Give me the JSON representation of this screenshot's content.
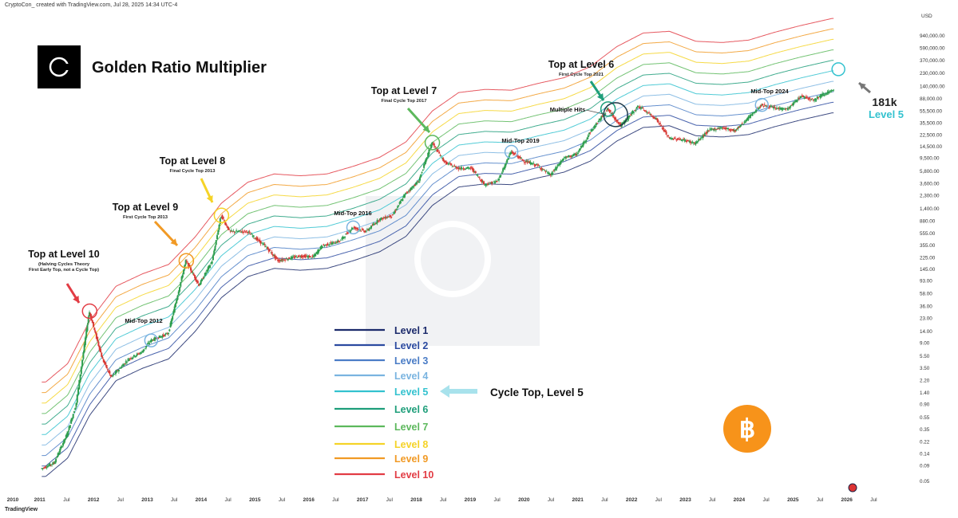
{
  "header": "CryptoCon_ created with TradingView.com, Jul 28, 2025 14:34 UTC-4",
  "footer": "TradingView",
  "colors": {
    "level_1": "#1b2a6b",
    "level_2": "#2b4aa0",
    "level_3": "#4a7cc6",
    "level_4": "#7ab4e0",
    "level_5": "#33c2cf",
    "level_6": "#1e9e7a",
    "level_7": "#5cb85c",
    "level_8": "#f5d327",
    "level_9": "#f19a25",
    "level_10": "#e23c44",
    "bitcoin": "#f7931a",
    "candle_up": "#2e9e4f",
    "candle_down": "#d83b36"
  },
  "chart_data": {
    "type": "line",
    "title": "Golden Ratio Multiplier",
    "y_axis_unit": "USD",
    "y_scale": "log",
    "ylim": [
      0.05,
      1500000
    ],
    "y_ticks": [
      "940,000.00",
      "590,000.00",
      "370,000.00",
      "230,000.00",
      "140,000.00",
      "88,000.00",
      "55,500.00",
      "35,500.00",
      "22,500.00",
      "14,500.00",
      "9,500.00",
      "5,800.00",
      "3,600.00",
      "2,300.00",
      "1,400.00",
      "880.00",
      "555.00",
      "355.00",
      "225.00",
      "145.00",
      "93.00",
      "58.00",
      "36.00",
      "23.00",
      "14.00",
      "9.00",
      "5.50",
      "3.50",
      "2.20",
      "1.40",
      "0.90",
      "0.55",
      "0.35",
      "0.22",
      "0.14",
      "0.09",
      "0.05"
    ],
    "x_ticks": [
      "2010",
      "2011",
      "Jul",
      "2012",
      "Jul",
      "2013",
      "Jul",
      "2014",
      "Jul",
      "2015",
      "Jul",
      "2016",
      "Jul",
      "2017",
      "Jul",
      "2018",
      "Jul",
      "2019",
      "Jul",
      "2020",
      "Jul",
      "2021",
      "Jul",
      "2022",
      "Jul",
      "2023",
      "Jul",
      "2024",
      "Jul",
      "2025",
      "Jul",
      "2026",
      "Jul"
    ],
    "grid": false,
    "legend_placement": "bottom-center",
    "legend": [
      "Level 1",
      "Level 2",
      "Level 3",
      "Level 4",
      "Level 5",
      "Level 6",
      "Level 7",
      "Level 8",
      "Level 9",
      "Level 10"
    ],
    "price_series": [
      [
        "2010-07",
        0.08
      ],
      [
        "2010-10",
        0.1
      ],
      [
        "2011-01",
        0.3
      ],
      [
        "2011-03",
        0.9
      ],
      [
        "2011-06",
        30
      ],
      [
        "2011-09",
        5
      ],
      [
        "2011-11",
        2.5
      ],
      [
        "2012-03",
        5
      ],
      [
        "2012-06",
        6.5
      ],
      [
        "2012-08",
        10
      ],
      [
        "2012-12",
        13
      ],
      [
        "2013-04",
        200
      ],
      [
        "2013-07",
        80
      ],
      [
        "2013-10",
        200
      ],
      [
        "2013-12",
        1100
      ],
      [
        "2014-02",
        600
      ],
      [
        "2014-06",
        600
      ],
      [
        "2014-10",
        350
      ],
      [
        "2015-01",
        200
      ],
      [
        "2015-06",
        240
      ],
      [
        "2015-09",
        230
      ],
      [
        "2015-11",
        350
      ],
      [
        "2016-03",
        420
      ],
      [
        "2016-06",
        700
      ],
      [
        "2016-09",
        600
      ],
      [
        "2016-12",
        950
      ],
      [
        "2017-03",
        1100
      ],
      [
        "2017-06",
        2500
      ],
      [
        "2017-09",
        4000
      ],
      [
        "2017-12",
        17000
      ],
      [
        "2018-03",
        8000
      ],
      [
        "2018-06",
        6500
      ],
      [
        "2018-09",
        6500
      ],
      [
        "2018-12",
        3500
      ],
      [
        "2019-03",
        4000
      ],
      [
        "2019-06",
        12000
      ],
      [
        "2019-09",
        8500
      ],
      [
        "2019-12",
        7200
      ],
      [
        "2020-03",
        5000
      ],
      [
        "2020-06",
        9500
      ],
      [
        "2020-09",
        11000
      ],
      [
        "2020-12",
        25000
      ],
      [
        "2021-04",
        60000
      ],
      [
        "2021-07",
        32000
      ],
      [
        "2021-11",
        67000
      ],
      [
        "2022-03",
        42000
      ],
      [
        "2022-06",
        20000
      ],
      [
        "2022-09",
        19000
      ],
      [
        "2022-12",
        16500
      ],
      [
        "2023-03",
        27000
      ],
      [
        "2023-06",
        30000
      ],
      [
        "2023-09",
        26500
      ],
      [
        "2023-12",
        43000
      ],
      [
        "2024-03",
        70000
      ],
      [
        "2024-06",
        62000
      ],
      [
        "2024-09",
        60000
      ],
      [
        "2024-12",
        98000
      ],
      [
        "2025-03",
        85000
      ],
      [
        "2025-05",
        105000
      ],
      [
        "2025-07",
        118000
      ]
    ],
    "level_base_series": [
      [
        "2010-08",
        0.06
      ],
      [
        "2011-01",
        0.12
      ],
      [
        "2011-06",
        0.6
      ],
      [
        "2011-12",
        2.2
      ],
      [
        "2012-06",
        3.5
      ],
      [
        "2012-12",
        5
      ],
      [
        "2013-06",
        14
      ],
      [
        "2013-12",
        50
      ],
      [
        "2014-06",
        110
      ],
      [
        "2014-12",
        150
      ],
      [
        "2015-06",
        140
      ],
      [
        "2015-12",
        150
      ],
      [
        "2016-06",
        200
      ],
      [
        "2016-12",
        280
      ],
      [
        "2017-06",
        500
      ],
      [
        "2017-12",
        1600
      ],
      [
        "2018-06",
        3200
      ],
      [
        "2018-12",
        3600
      ],
      [
        "2019-06",
        3500
      ],
      [
        "2019-12",
        4500
      ],
      [
        "2020-06",
        5600
      ],
      [
        "2020-12",
        8500
      ],
      [
        "2021-06",
        18000
      ],
      [
        "2021-12",
        30000
      ],
      [
        "2022-06",
        32000
      ],
      [
        "2022-12",
        22000
      ],
      [
        "2023-06",
        21000
      ],
      [
        "2023-12",
        23000
      ],
      [
        "2024-06",
        31000
      ],
      [
        "2024-12",
        40000
      ],
      [
        "2025-07",
        52000
      ]
    ],
    "annotations": [
      {
        "title": "Top at Level 10",
        "subtitle": "(Halving Cycles Theory\nFirst Early Top, not a Cycle Top)",
        "level": 10,
        "at": "2011-06"
      },
      {
        "title": "Top at Level 9",
        "subtitle": "First Cycle Top 2013",
        "level": 9,
        "at": "2013-04"
      },
      {
        "title": "Top at Level 8",
        "subtitle": "Final Cycle Top 2013",
        "level": 8,
        "at": "2013-12"
      },
      {
        "title": "Top at Level 7",
        "subtitle": "Final Cycle Top 2017",
        "level": 7,
        "at": "2017-12"
      },
      {
        "title": "Top at Level 6",
        "subtitle": "First Cycle Top 2021",
        "level": 6,
        "at": "2021-04"
      },
      {
        "title": "Mid-Top 2012",
        "subtitle": "",
        "level": 4,
        "at": "2012-08"
      },
      {
        "title": "Mid-Top 2016",
        "subtitle": "",
        "level": 4,
        "at": "2016-06"
      },
      {
        "title": "Mid-Top 2019",
        "subtitle": "",
        "level": 4,
        "at": "2019-06"
      },
      {
        "title": "Mid-Top 2024",
        "subtitle": "",
        "level": 4,
        "at": "2024-03"
      },
      {
        "title": "Multiple Hits",
        "subtitle": "",
        "level": 6,
        "at": "2021-05"
      }
    ],
    "projection": {
      "value_label": "181k",
      "level_label": "Level 5"
    },
    "cycle_top_label": "Cycle Top, Level 5"
  }
}
